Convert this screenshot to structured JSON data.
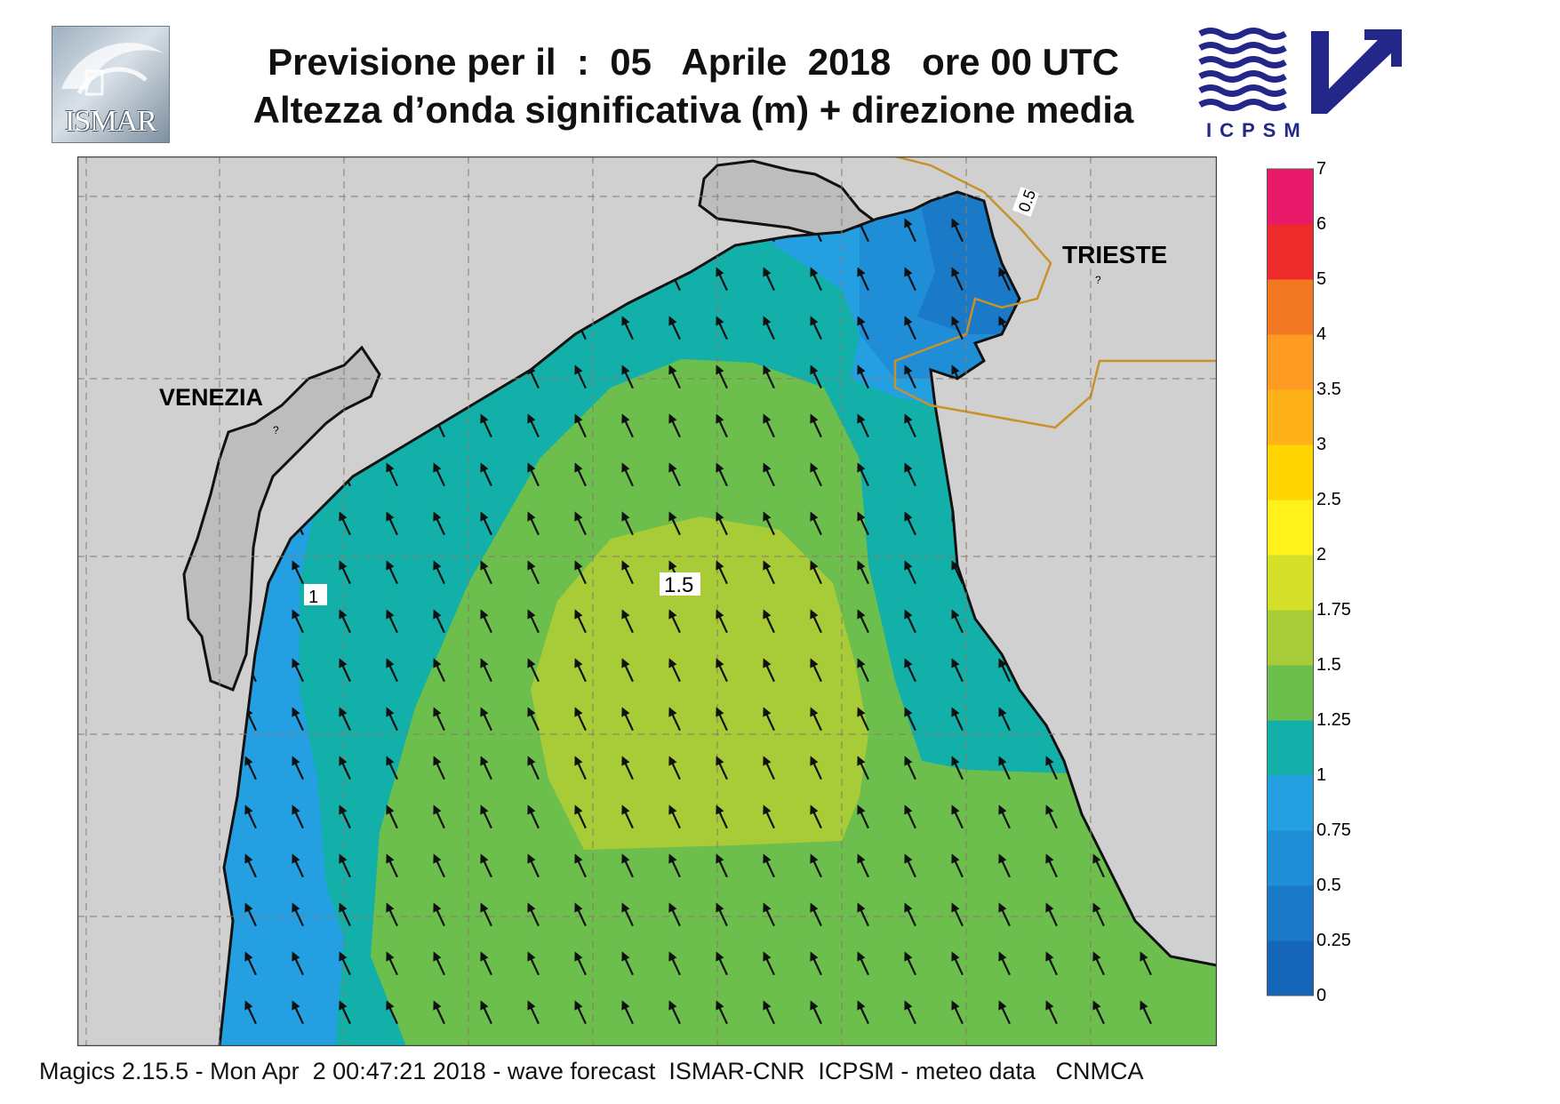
{
  "header": {
    "title_line1": "Previsione per il  :  05   Aprile  2018   ore 00 UTC",
    "title_line2": "Altezza d’onda significativa (m) + direzione media"
  },
  "logos": {
    "left": "ISMAR",
    "right": "ICPSM"
  },
  "map": {
    "region": "northern Adriatic Sea",
    "labels": {
      "venezia": "VENEZIA",
      "trieste": "TRIESTE"
    },
    "contour_labels": [
      "1.5",
      "1",
      "0.5"
    ],
    "unknown_marks": [
      "?",
      "?"
    ],
    "colors": {
      "land": "#d0d0d0",
      "coastline": "#111111",
      "border": "#c8922a",
      "grid": "#8a7a6a",
      "arrow": "#111111"
    },
    "mean_wave_direction": "toward north-northwest"
  },
  "legend": {
    "unit": "m",
    "ticks": [
      "7",
      "6",
      "5",
      "4",
      "3.5",
      "3",
      "2.5",
      "2",
      "1.75",
      "1.5",
      "1.25",
      "1",
      "0.75",
      "0.5",
      "0.25",
      "0"
    ],
    "bands": [
      {
        "from": 0,
        "to": 0.25,
        "color": "#1565b8"
      },
      {
        "from": 0.25,
        "to": 0.5,
        "color": "#1a7ac7"
      },
      {
        "from": 0.5,
        "to": 0.75,
        "color": "#1f8ed6"
      },
      {
        "from": 0.75,
        "to": 1,
        "color": "#24a0e2"
      },
      {
        "from": 1,
        "to": 1.25,
        "color": "#12b0a8"
      },
      {
        "from": 1.25,
        "to": 1.5,
        "color": "#6cbf4c"
      },
      {
        "from": 1.5,
        "to": 1.75,
        "color": "#a8cb38"
      },
      {
        "from": 1.75,
        "to": 2,
        "color": "#d4e028"
      },
      {
        "from": 2,
        "to": 2.5,
        "color": "#fff21a"
      },
      {
        "from": 2.5,
        "to": 3,
        "color": "#ffd400"
      },
      {
        "from": 3,
        "to": 3.5,
        "color": "#ffb218"
      },
      {
        "from": 3.5,
        "to": 4,
        "color": "#ff9a22"
      },
      {
        "from": 4,
        "to": 5,
        "color": "#f37823"
      },
      {
        "from": 5,
        "to": 6,
        "color": "#ee2b2b"
      },
      {
        "from": 6,
        "to": 7,
        "color": "#ea1a6a"
      }
    ]
  },
  "footer": {
    "text": "Magics 2.15.5 - Mon Apr  2 00:47:21 2018 - wave forecast  ISMAR-CNR  ICPSM - meteo data   CNMCA"
  }
}
